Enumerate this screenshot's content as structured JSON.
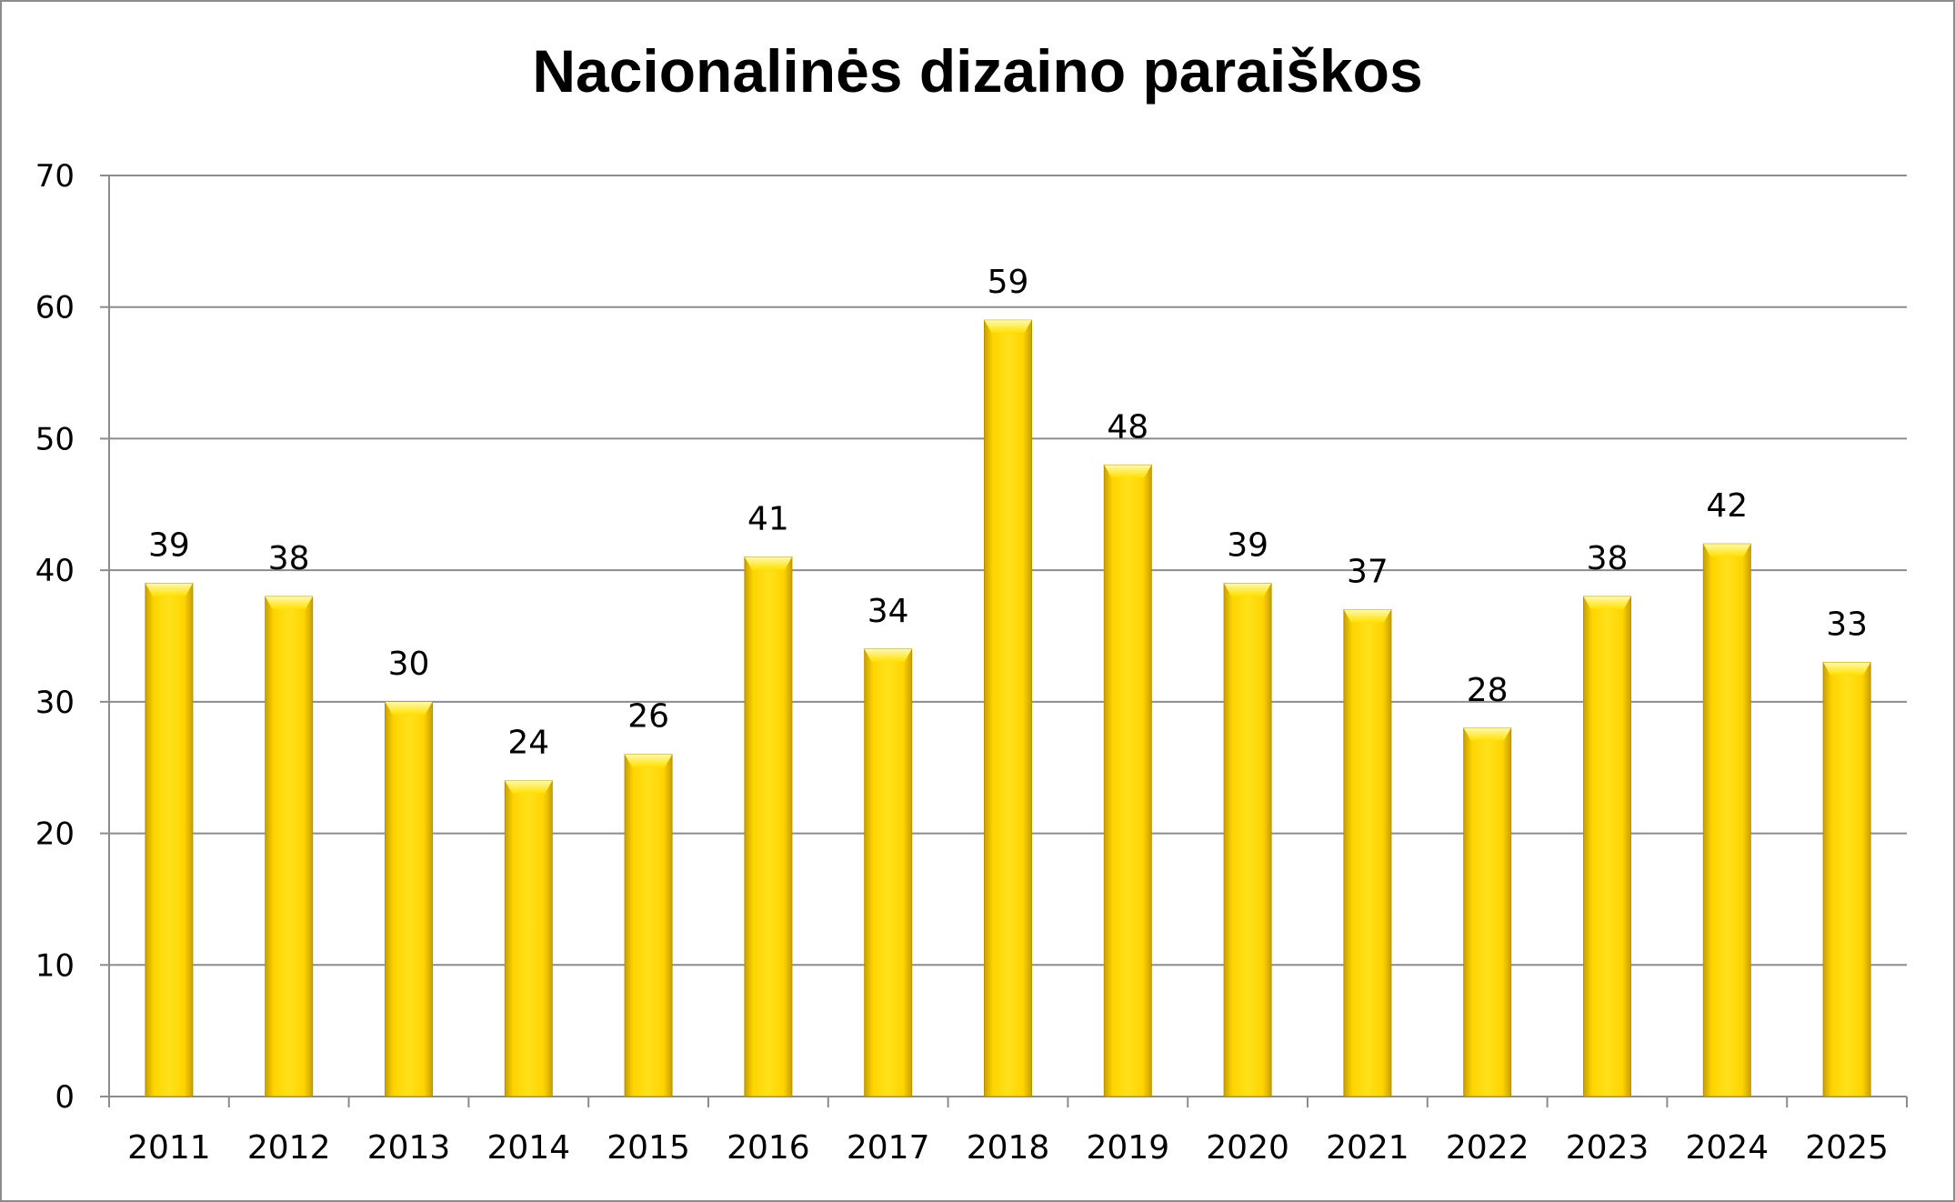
{
  "chart_data": {
    "type": "bar",
    "title": "Nacionalinės dizaino paraiškos",
    "xlabel": "",
    "ylabel": "",
    "categories": [
      "2011",
      "2012",
      "2013",
      "2014",
      "2015",
      "2016",
      "2017",
      "2018",
      "2019",
      "2020",
      "2021",
      "2022",
      "2023",
      "2024",
      "2025"
    ],
    "values": [
      39,
      38,
      30,
      24,
      26,
      41,
      34,
      59,
      48,
      39,
      37,
      28,
      38,
      42,
      33
    ],
    "ylim": [
      0,
      70
    ],
    "yticks": [
      "0",
      "10",
      "20",
      "30",
      "40",
      "50",
      "60",
      "70"
    ],
    "grid": true,
    "legend": "none",
    "data_labels": true,
    "colors": {
      "bar_light": "#fff27a",
      "bar_main": "#ffd400",
      "bar_dark": "#c9a000",
      "grid": "#8c8c8c",
      "frame": "#8c8c8c"
    }
  }
}
